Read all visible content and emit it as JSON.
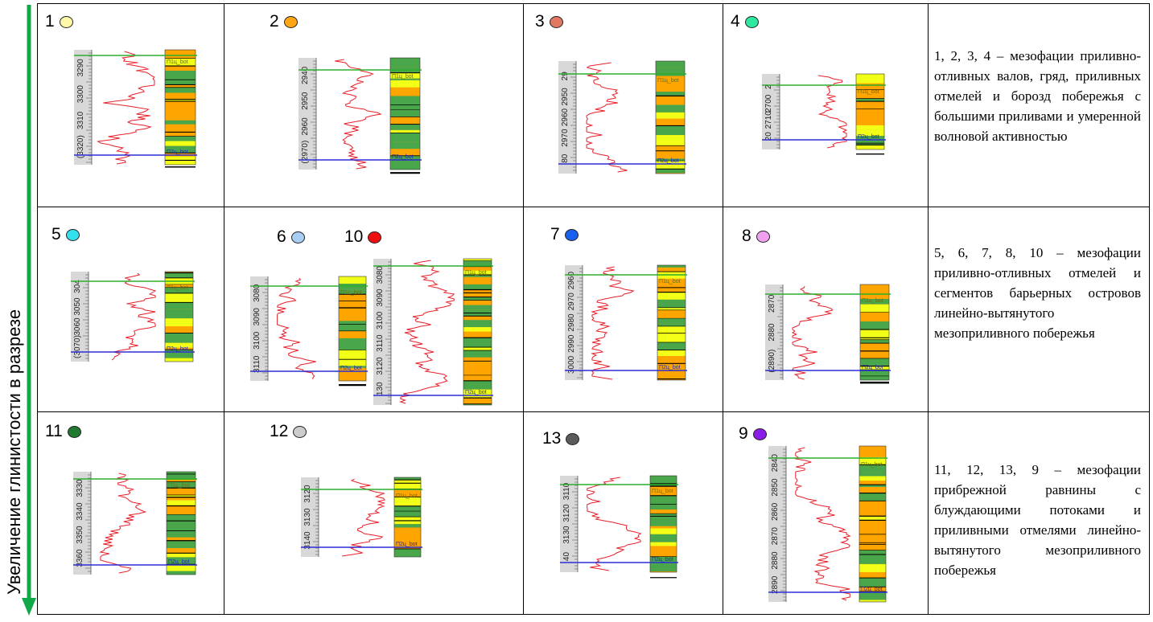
{
  "axis_label": "Увеличение глинистости в разрезе",
  "colors": {
    "arrow": "#12a84a",
    "top_line": "#2cae2c",
    "base_line": "#2e2ed6",
    "curve": "#e8202a",
    "sand_yellow": "#f2ff17",
    "sand_orange": "#ffa500",
    "shale_green": "#4aa64a",
    "depth_track": "#d8d8d8"
  },
  "markers": [
    {
      "num": "1",
      "color": "#fff8a8"
    },
    {
      "num": "2",
      "color": "#ffa617"
    },
    {
      "num": "3",
      "color": "#e07862"
    },
    {
      "num": "4",
      "color": "#2ee8a0"
    },
    {
      "num": "5",
      "color": "#33e0ee"
    },
    {
      "num": "6",
      "color": "#a8cef4"
    },
    {
      "num": "10",
      "color": "#ee1010"
    },
    {
      "num": "7",
      "color": "#1a60ee"
    },
    {
      "num": "8",
      "color": "#f0a0ee"
    },
    {
      "num": "11",
      "color": "#1f7a30"
    },
    {
      "num": "12",
      "color": "#cccccc"
    },
    {
      "num": "13",
      "color": "#5a5a5a"
    },
    {
      "num": "9",
      "color": "#8a1ee8"
    }
  ],
  "descriptions": [
    "1, 2, 3, 4 – мезофации приливно-отливных валов, гряд, приливных отмелей и борозд побережья с большими приливами и умеренной волновой активностью",
    "5, 6, 7, 8, 10 – мезофации приливно-отливных отмелей и сегментов барьерных островов линейно-вытянутого мезоприливного побережья",
    "11, 12, 13, 9 – мезофации прибрежной равнины с блуждающими потоками и приливными отмелями линейно-вытянутого мезоприливного побережья"
  ],
  "logs": [
    {
      "ticks": [
        "3290",
        "3300",
        "3310",
        "(3320)"
      ],
      "top": "П1ц_bot",
      "base": "П2ц_bot"
    },
    {
      "ticks": [
        "2940",
        "2950",
        "2960",
        "(2970)"
      ],
      "top": "П1ц_bot",
      "base": "П2ц_bot"
    },
    {
      "ticks": [
        "29",
        "2950",
        "2960",
        "2970",
        "80"
      ],
      "top": "П1ц_bot",
      "base": "П2ц_bot"
    },
    {
      "ticks": [
        "2",
        "2700",
        "2710",
        "20"
      ],
      "top": "П1ц_bot",
      "base": "П2ц_bot"
    },
    {
      "ticks": [
        "304",
        "3050",
        "3060",
        "(3070)"
      ],
      "top": "П1ц_bot",
      "base": "П2ц_bot"
    },
    {
      "ticks": [
        "3080",
        "3090",
        "3100",
        "3110"
      ],
      "top": "П1ц_bot",
      "base": "П2ц_bot"
    },
    {
      "ticks": [
        "3080",
        "3090",
        "3100",
        "3110",
        "3120",
        "130"
      ],
      "top": "П1ц_bot",
      "base": "П2ц_bot"
    },
    {
      "ticks": [
        "2960",
        "2970",
        "2980",
        "2990",
        "3000"
      ],
      "top": "П1ц_bot",
      "base": "П2ц_bot"
    },
    {
      "ticks": [
        "2870",
        "2880",
        "(2890)"
      ],
      "top": "П1ц_bot",
      "base": "П2ц_bot"
    },
    {
      "ticks": [
        "3330",
        "3340",
        "3350",
        "3360"
      ],
      "top": "П1ц_bot",
      "base": "П2ц_bot"
    },
    {
      "ticks": [
        "3120",
        "3130",
        "3140"
      ],
      "top": "П1ц_bot",
      "base": "П2ц_bot"
    },
    {
      "ticks": [
        "3110",
        "3120",
        "3130",
        "40"
      ],
      "top": "П1ц_bot",
      "base": "П2ц_bot"
    },
    {
      "ticks": [
        "2840",
        "2850",
        "2860",
        "2870",
        "2880",
        "2890"
      ],
      "top": "П1ц_bot",
      "base": "П2ц_bot"
    }
  ]
}
